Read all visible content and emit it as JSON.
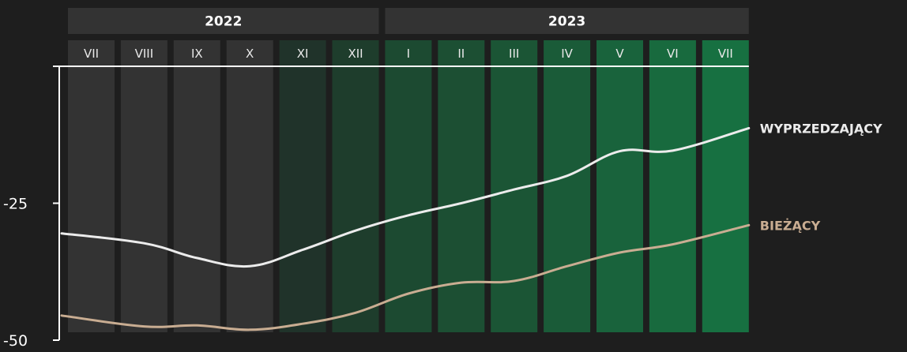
{
  "chart_data": {
    "type": "line",
    "title": "",
    "xlabel": "",
    "ylabel": "",
    "ylim": [
      -50,
      0
    ],
    "yticks": [
      {
        "value": -25,
        "label": "-25"
      },
      {
        "value": -50,
        "label": "-50"
      }
    ],
    "years": [
      {
        "label": "2022",
        "span": 6
      },
      {
        "label": "2023",
        "span": 7
      }
    ],
    "categories": [
      "VII",
      "VIII",
      "IX",
      "X",
      "XI",
      "XII",
      "I",
      "II",
      "III",
      "IV",
      "V",
      "VI",
      "VII"
    ],
    "column_colors": [
      "#333333",
      "#333333",
      "#333333",
      "#333333",
      "#20332a",
      "#1e3d2c",
      "#1c4a31",
      "#1c4f33",
      "#1b5535",
      "#1a5b38",
      "#19633c",
      "#186a3e",
      "#177041"
    ],
    "series": [
      {
        "name": "WYPRZEDZAJĄCY",
        "color": "#ececec",
        "values": [
          -30.5,
          -32.3,
          -35.0,
          -36.5,
          -33.5,
          -30.0,
          -27.2,
          -25.0,
          -22.5,
          -20.0,
          -15.5,
          -15.4,
          -11.3
        ]
      },
      {
        "name": "BIEŻĄCY",
        "color": "#c9ad92",
        "values": [
          -45.5,
          -47.5,
          -47.3,
          -48.1,
          -47.0,
          -45.0,
          -41.5,
          -39.5,
          -39.2,
          -36.5,
          -34.0,
          -32.5,
          -29.0
        ]
      }
    ]
  }
}
